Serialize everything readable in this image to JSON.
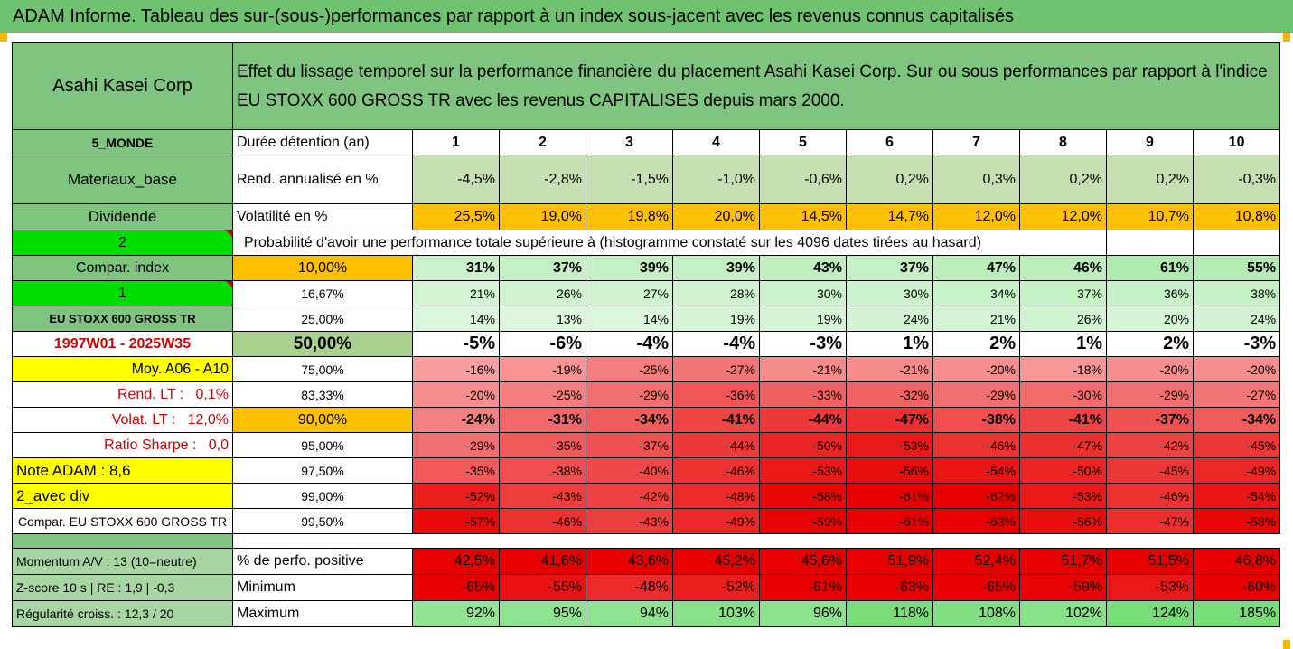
{
  "title": "ADAM Informe. Tableau des sur-(sous-)performances par rapport à un index sous-jacent avec les revenus connus capitalisés",
  "company": "Asahi Kasei Corp",
  "description": "Effet du lissage temporel sur la performance financière du placement Asahi Kasei Corp. Sur ou sous performances par rapport à l'indice EU STOXX 600 GROSS TR avec les revenus CAPITALISES depuis mars 2000.",
  "left": {
    "region": "5_MONDE",
    "sector": "Materiaux_base",
    "dividend": "Dividende",
    "num2": "2",
    "compar_index": "Compar. index",
    "num1": "1",
    "index_name": "EU STOXX 600 GROSS TR",
    "period": "1997W01 - 2025W35",
    "moy": "Moy. A06 - A10",
    "rend_lt": "Rend. LT :   0,1%",
    "volat_lt": "Volat. LT :   12,0%",
    "sharpe": "Ratio Sharpe :   0,0",
    "note": "Note ADAM : 8,6",
    "avec_div": "2_avec div",
    "compar_full": "Compar. EU STOXX 600 GROSS TR",
    "momentum": "Momentum A/V : 13 (10=neutre)",
    "zscore": "Z-score 10 s  | RE : 1,9 | -0,3",
    "regularite": "Régularité croiss. : 12,3 / 20"
  },
  "labels": {
    "duree": "Durée détention (an)",
    "rend": "Rend. annualisé en %",
    "volat": "Volatilité en %",
    "proba": "Probabilité d'avoir une performance totale supérieure à (histogramme constaté sur les 4096 dates tirées au hasard)",
    "perf_pos": "% de perfo. positive",
    "minimum": "Minimum",
    "maximum": "Maximum"
  },
  "years": [
    "1",
    "2",
    "3",
    "4",
    "5",
    "6",
    "7",
    "8",
    "9",
    "10"
  ],
  "rend": [
    "-4,5%",
    "-2,8%",
    "-1,5%",
    "-1,0%",
    "-0,6%",
    "0,2%",
    "0,3%",
    "0,2%",
    "0,2%",
    "-0,3%"
  ],
  "volat": [
    "25,5%",
    "19,0%",
    "19,8%",
    "20,0%",
    "14,5%",
    "14,7%",
    "12,0%",
    "12,0%",
    "10,7%",
    "10,8%"
  ],
  "proba_rows": [
    {
      "pct": "10,00%",
      "values": [
        "31%",
        "37%",
        "39%",
        "39%",
        "43%",
        "37%",
        "47%",
        "46%",
        "61%",
        "55%"
      ]
    },
    {
      "pct": "16,67%",
      "values": [
        "21%",
        "26%",
        "27%",
        "28%",
        "30%",
        "30%",
        "34%",
        "37%",
        "36%",
        "38%"
      ]
    },
    {
      "pct": "25,00%",
      "values": [
        "14%",
        "13%",
        "14%",
        "19%",
        "19%",
        "24%",
        "21%",
        "26%",
        "20%",
        "24%"
      ]
    },
    {
      "pct": "50,00%",
      "values": [
        "-5%",
        "-6%",
        "-4%",
        "-4%",
        "-3%",
        "1%",
        "2%",
        "1%",
        "2%",
        "-3%"
      ]
    },
    {
      "pct": "75,00%",
      "values": [
        "-16%",
        "-19%",
        "-25%",
        "-27%",
        "-21%",
        "-21%",
        "-20%",
        "-18%",
        "-20%",
        "-20%"
      ]
    },
    {
      "pct": "83,33%",
      "values": [
        "-20%",
        "-25%",
        "-29%",
        "-36%",
        "-33%",
        "-32%",
        "-29%",
        "-30%",
        "-29%",
        "-27%"
      ]
    },
    {
      "pct": "90,00%",
      "values": [
        "-24%",
        "-31%",
        "-34%",
        "-41%",
        "-44%",
        "-47%",
        "-38%",
        "-41%",
        "-37%",
        "-34%"
      ]
    },
    {
      "pct": "95,00%",
      "values": [
        "-29%",
        "-35%",
        "-37%",
        "-44%",
        "-50%",
        "-53%",
        "-46%",
        "-47%",
        "-42%",
        "-45%"
      ]
    },
    {
      "pct": "97,50%",
      "values": [
        "-35%",
        "-38%",
        "-40%",
        "-46%",
        "-53%",
        "-56%",
        "-54%",
        "-50%",
        "-45%",
        "-49%"
      ]
    },
    {
      "pct": "99,00%",
      "values": [
        "-52%",
        "-43%",
        "-42%",
        "-48%",
        "-58%",
        "-61%",
        "-62%",
        "-53%",
        "-46%",
        "-54%"
      ]
    },
    {
      "pct": "99,50%",
      "values": [
        "-57%",
        "-46%",
        "-43%",
        "-49%",
        "-59%",
        "-61%",
        "-63%",
        "-56%",
        "-47%",
        "-58%"
      ]
    }
  ],
  "perf_pos": [
    "42,5%",
    "41,6%",
    "43,6%",
    "45,2%",
    "45,6%",
    "51,9%",
    "52,4%",
    "51,7%",
    "51,5%",
    "46,8%"
  ],
  "minimum": [
    "-65%",
    "-55%",
    "-48%",
    "-52%",
    "-61%",
    "-63%",
    "-65%",
    "-59%",
    "-53%",
    "-60%"
  ],
  "maximum": [
    "92%",
    "95%",
    "94%",
    "103%",
    "96%",
    "118%",
    "108%",
    "102%",
    "124%",
    "185%"
  ]
}
